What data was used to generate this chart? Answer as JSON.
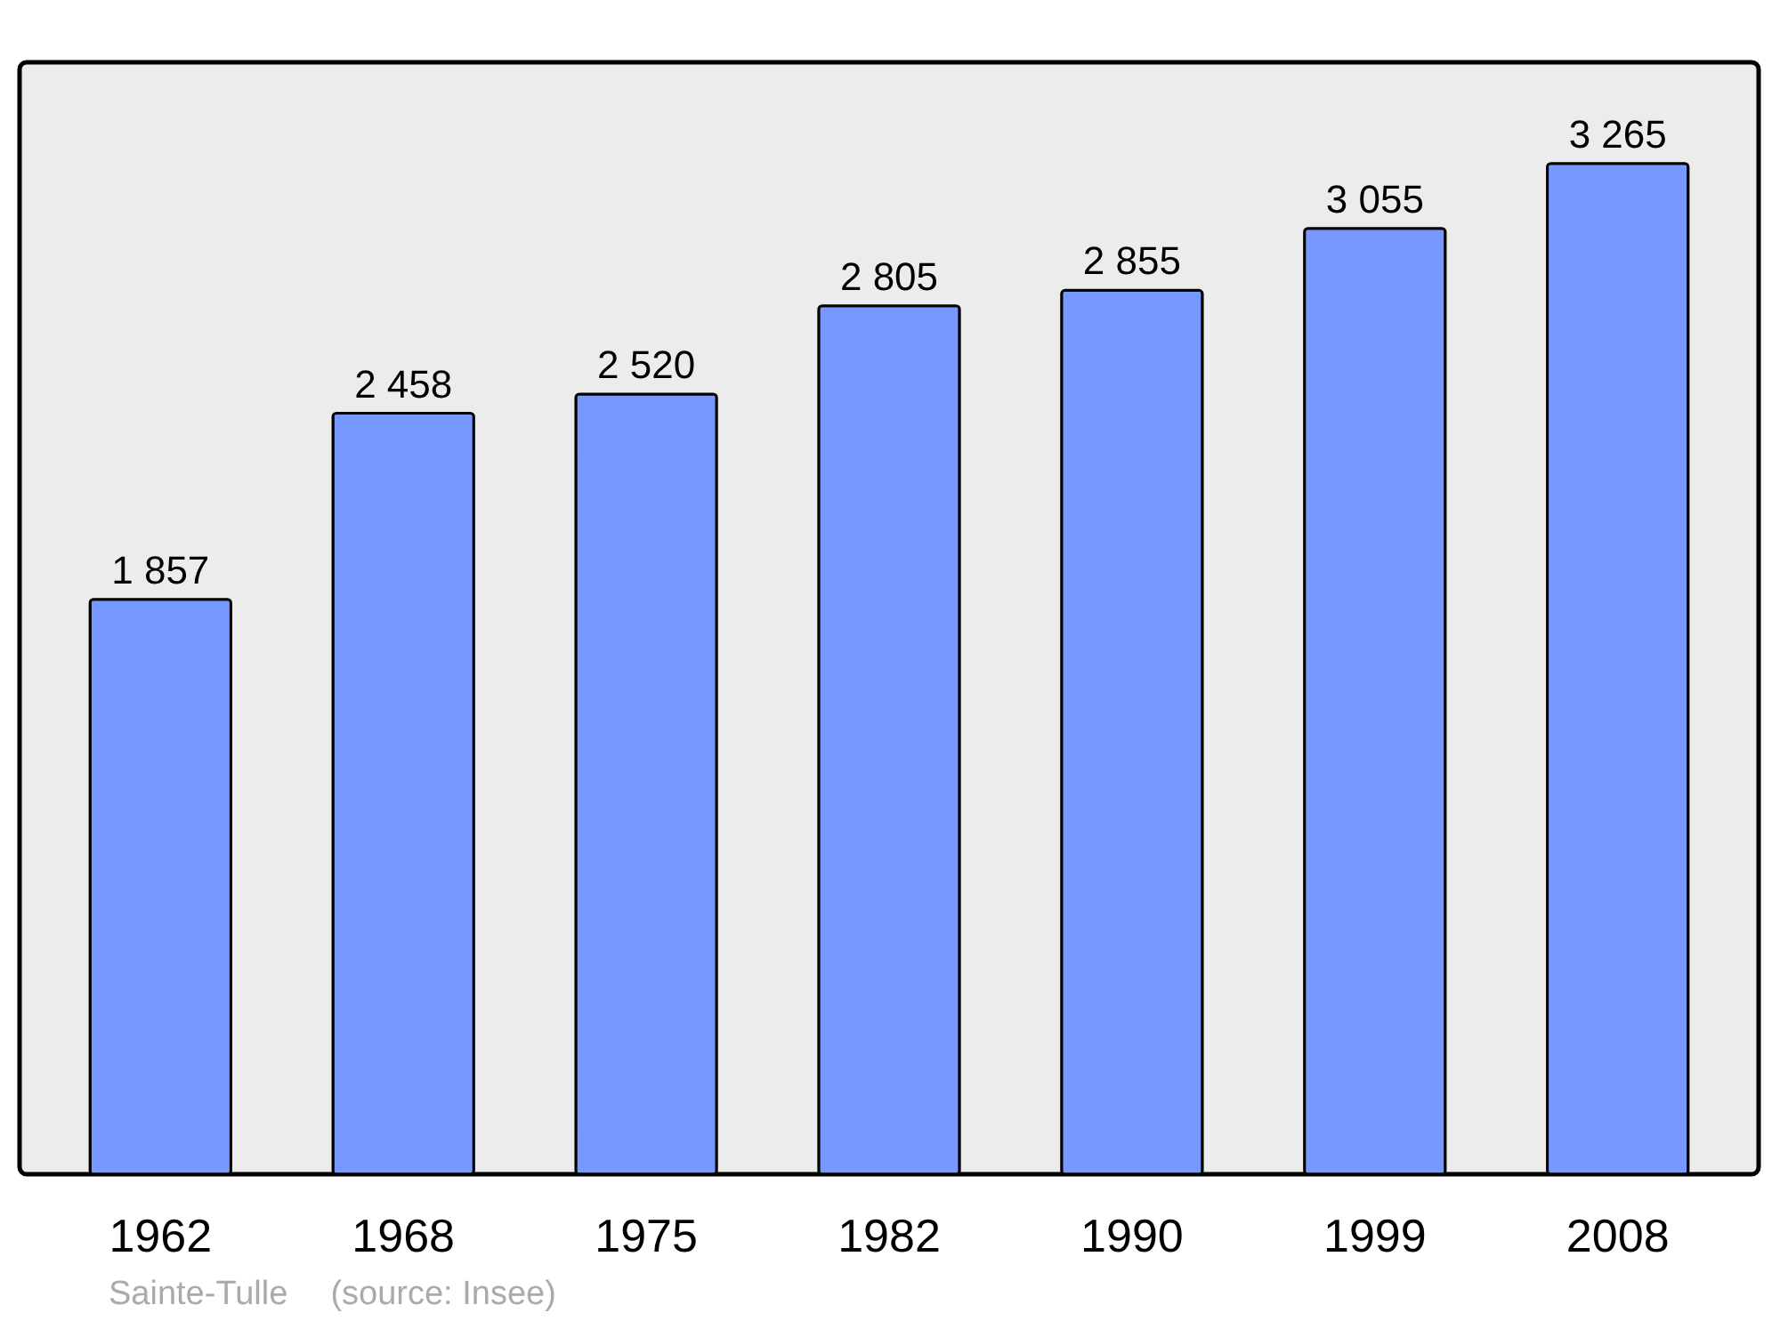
{
  "chart_data": {
    "type": "bar",
    "categories": [
      "1962",
      "1968",
      "1975",
      "1982",
      "1990",
      "1999",
      "2008"
    ],
    "values": [
      1857,
      2458,
      2520,
      2805,
      2855,
      3055,
      3265
    ],
    "value_labels": [
      "1 857",
      "2 458",
      "2 520",
      "2 805",
      "2 855",
      "3 055",
      "3 265"
    ],
    "color": "#7799ff",
    "annotations": [
      "Sainte-Tulle",
      "(source: Insee)"
    ]
  }
}
